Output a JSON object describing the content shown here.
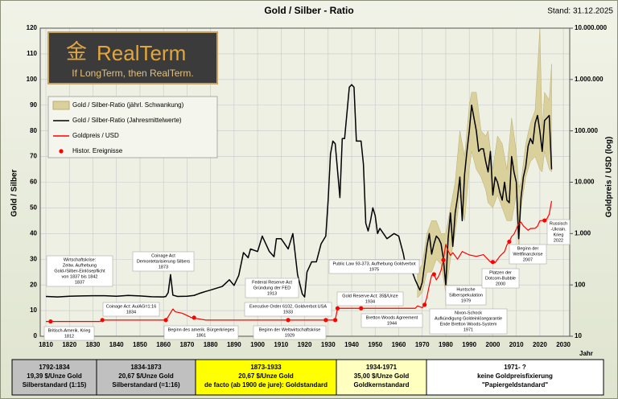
{
  "chart_data": {
    "type": "line",
    "title": "Gold / Silber - Ratio",
    "subtitle": "Stand: 31.12.2025",
    "xlabel": "Jahr",
    "ylabel": "Gold / Silber",
    "y2label": "Goldpreis / USD (log)",
    "xlim": [
      1807.6,
      2032.7
    ],
    "xticks": [
      1810,
      1820,
      1830,
      1840,
      1850,
      1860,
      1870,
      1880,
      1890,
      1900,
      1910,
      1920,
      1930,
      1940,
      1950,
      1960,
      1970,
      1980,
      1990,
      2000,
      2010,
      2020,
      2030
    ],
    "ylim": [
      0,
      120
    ],
    "yticks": [
      0,
      10,
      20,
      30,
      40,
      50,
      60,
      70,
      80,
      90,
      100,
      110,
      120
    ],
    "y2lim": [
      10,
      10000000
    ],
    "y2log": true,
    "y2ticks": [
      10,
      100,
      {
        "value": 1000,
        "label": "1.000"
      },
      {
        "value": 10000,
        "label": "10.000"
      },
      {
        "value": 100000,
        "label": "100.000"
      },
      {
        "value": 1000000,
        "label": "1.000.000"
      },
      {
        "value": 10000000,
        "label": "10.000.000"
      }
    ],
    "grid": true,
    "series": [
      {
        "name": "Gold / Silber-Ratio (jährl. Schwankung)",
        "type": "band",
        "color": "#d9d09c",
        "x": [
          1968,
          1970,
          1972,
          1974,
          1976,
          1978,
          1980,
          1982,
          1984,
          1986,
          1988,
          1990,
          1991,
          1993,
          1995,
          1997,
          1998,
          2000,
          2002,
          2004,
          2006,
          2008,
          2010,
          2011,
          2012,
          2014,
          2016,
          2018,
          2020,
          2021,
          2022,
          2024,
          2025
        ],
        "low": [
          15,
          17,
          25,
          25,
          30,
          28,
          17,
          30,
          40,
          55,
          45,
          65,
          72,
          65,
          62,
          57,
          52,
          50,
          55,
          50,
          45,
          45,
          55,
          32,
          50,
          62,
          68,
          70,
          65,
          64,
          72,
          65,
          64
        ],
        "high": [
          25,
          28,
          40,
          45,
          45,
          40,
          40,
          50,
          60,
          80,
          70,
          90,
          95,
          95,
          80,
          78,
          80,
          65,
          78,
          75,
          65,
          85,
          72,
          58,
          60,
          75,
          83,
          88,
          120,
          80,
          95,
          92,
          106
        ]
      },
      {
        "name": "Gold / Silber-Ratio (Jahresmittelwerte)",
        "type": "line",
        "color": "#000000",
        "x": [
          1810,
          1815,
          1820,
          1825,
          1830,
          1835,
          1840,
          1845,
          1850,
          1855,
          1860,
          1861,
          1862,
          1863,
          1864,
          1866,
          1870,
          1873,
          1875,
          1877,
          1880,
          1885,
          1888,
          1890,
          1892,
          1894,
          1896,
          1897,
          1900,
          1902,
          1905,
          1907,
          1908,
          1910,
          1913,
          1915,
          1917,
          1919,
          1920,
          1921,
          1923,
          1925,
          1927,
          1929,
          1930,
          1931,
          1932,
          1933,
          1935,
          1936,
          1937,
          1939,
          1940,
          1941,
          1942,
          1944,
          1945,
          1946,
          1947,
          1948,
          1949,
          1950,
          1951,
          1952,
          1955,
          1958,
          1960,
          1962,
          1963,
          1965,
          1967,
          1968,
          1969,
          1970,
          1972,
          1973,
          1974,
          1975,
          1976,
          1977,
          1978,
          1979,
          1980,
          1981,
          1982,
          1983,
          1984,
          1985,
          1986,
          1987,
          1988,
          1989,
          1990,
          1991,
          1992,
          1993,
          1994,
          1995,
          1996,
          1997,
          1998,
          1999,
          2000,
          2001,
          2002,
          2003,
          2004,
          2005,
          2006,
          2007,
          2008,
          2009,
          2010,
          2011,
          2012,
          2013,
          2014,
          2015,
          2016,
          2017,
          2018,
          2019,
          2020,
          2021,
          2022,
          2023,
          2024,
          2025
        ],
        "values": [
          15.5,
          15.3,
          15.6,
          15.7,
          15.8,
          15.8,
          15.6,
          15.9,
          15.7,
          15.4,
          15.3,
          15.5,
          17,
          24,
          16,
          15.5,
          15.6,
          15.9,
          16.6,
          17.2,
          18,
          19.4,
          22,
          19.8,
          23.7,
          32.6,
          30.6,
          34,
          33,
          39,
          33,
          31,
          38,
          38,
          34,
          40,
          24,
          16.5,
          15.3,
          25,
          29,
          29,
          36,
          39,
          53,
          71,
          76,
          75,
          54,
          77,
          77,
          97,
          98,
          97,
          76,
          76,
          67,
          44,
          41,
          45,
          50,
          47,
          40,
          42,
          38,
          40,
          39,
          32,
          27,
          27,
          22,
          20,
          18,
          21,
          35,
          40,
          32,
          36,
          39,
          38,
          36,
          30,
          20,
          38,
          48,
          35,
          48,
          54,
          62,
          45,
          63,
          72,
          80,
          90,
          85,
          80,
          72,
          73,
          73,
          68,
          64,
          72,
          55,
          62,
          60,
          56,
          53,
          60,
          53,
          52,
          70,
          64,
          60,
          38,
          54,
          62,
          66,
          74,
          77,
          75,
          83,
          86,
          80,
          72,
          84,
          85,
          86,
          65
        ]
      },
      {
        "name": "Goldpreis / USD",
        "type": "line",
        "color": "#ff0000",
        "axis": "y2",
        "x": [
          1810,
          1833,
          1834,
          1861,
          1862,
          1864,
          1865,
          1868,
          1872,
          1878,
          1933,
          1934,
          1967,
          1968,
          1970,
          1971,
          1972,
          1973,
          1974,
          1975,
          1976,
          1977,
          1978,
          1979,
          1980,
          1981,
          1982,
          1983,
          1985,
          1987,
          1990,
          1993,
          1996,
          1999,
          2001,
          2003,
          2005,
          2006,
          2007,
          2008,
          2009,
          2010,
          2011,
          2012,
          2013,
          2015,
          2016,
          2018,
          2019,
          2020,
          2021,
          2022,
          2023,
          2024,
          2025
        ],
        "values": [
          19.39,
          19.39,
          20.67,
          20.67,
          24,
          34,
          30,
          28,
          23,
          20.67,
          20.67,
          35,
          35,
          39,
          36,
          41,
          58,
          97,
          154,
          161,
          125,
          148,
          193,
          306,
          615,
          460,
          376,
          424,
          317,
          447,
          384,
          360,
          388,
          279,
          271,
          363,
          445,
          604,
          695,
          872,
          972,
          1225,
          1572,
          1669,
          1411,
          1160,
          1251,
          1268,
          1393,
          1770,
          1799,
          1800,
          1943,
          2386,
          4300
        ]
      },
      {
        "name": "Histor. Ereignisse",
        "type": "scatter",
        "color": "#ff0000",
        "axis": "y2",
        "x": [
          1812,
          1834,
          1861,
          1873,
          1913,
          1929,
          1933,
          1934,
          1944,
          1971,
          1975,
          1979,
          2000,
          2007,
          2022
        ],
        "values": [
          19.39,
          20.67,
          20.67,
          23,
          20.67,
          20.67,
          20.67,
          35,
          35,
          41,
          161,
          306,
          279,
          695,
          1800
        ]
      }
    ],
    "annotations": [
      [
        "Britisch-Amerik. Krieg",
        "1812"
      ],
      [
        "Wirtschaftskrise:",
        "Zeitw. Aufhebung",
        "Gold-/Silber-Einlösepflicht",
        "von 1837 bis 1842",
        "1837"
      ],
      [
        "Coinage Act: Au/AG=1:16",
        "1834"
      ],
      [
        "Coinage Act",
        "Demontetarisierung Silbers",
        "1873"
      ],
      [
        "Beginn des amerik. Bürgerkrieges",
        "1861"
      ],
      [
        "Federal Reserve Act",
        "Gründung der FED",
        "1913"
      ],
      [
        "Executive Order 6102, Goldverbot USA",
        "1933"
      ],
      [
        "Beginn der Weltwirtschaftskrise",
        "1929"
      ],
      [
        "Public Law 93-373, Aufhebung Goldverbot",
        "1975"
      ],
      [
        "Gold Reserve Act: 35$/Unze",
        "1934"
      ],
      [
        "Bretton Woods Agreement",
        "1944"
      ],
      [
        "Nixon-Schock",
        "Aufkündigung Goldeinlösegarantie",
        "Ende Bretton Woods-System",
        "1971"
      ],
      [
        "Huntsche",
        "Silberspekulation",
        "1979"
      ],
      [
        "Platzen der",
        "Dotcom-Bubble",
        "2000"
      ],
      [
        "Beginn der",
        "Weltfinanzkrise",
        "2007"
      ],
      [
        "Russisch",
        "-Ukrain.",
        "Krieg",
        "2022"
      ]
    ]
  },
  "logo": {
    "mark": "金",
    "name": "RealTerm",
    "slogan": "If LongTerm, then RealTerm."
  },
  "periods": [
    [
      "1792-1834",
      "19,39 $/Unze Gold",
      "Silberstandard (1:15)"
    ],
    [
      "1834-1873",
      "20,67 $/Unze Gold",
      "Silberstandard (=1:16)"
    ],
    [
      "1873-1933",
      "20,67 $/Unze Gold",
      "de facto (ab 1900 de jure): Goldstandard"
    ],
    [
      "1934-1971",
      "35,00 $/Unze Gold",
      "Goldkernstandard"
    ],
    [
      "1971-  ?",
      "keine Goldpreisfixierung",
      "\"Papiergeldstandard\""
    ]
  ]
}
